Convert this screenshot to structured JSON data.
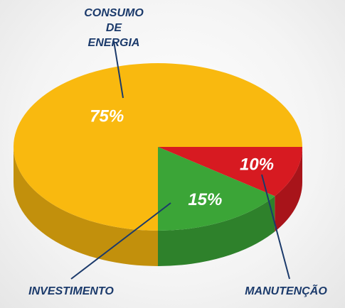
{
  "chart_data": {
    "type": "pie",
    "categories": [
      "MANUTENÇÃO",
      "INVESTIMENTO",
      "CONSUMO DE ENERGIA"
    ],
    "values": [
      10,
      15,
      75
    ],
    "value_labels": [
      "10%",
      "15%",
      "75%"
    ],
    "colors": [
      "#d71a21",
      "#3ba537",
      "#f9b90f"
    ]
  }
}
